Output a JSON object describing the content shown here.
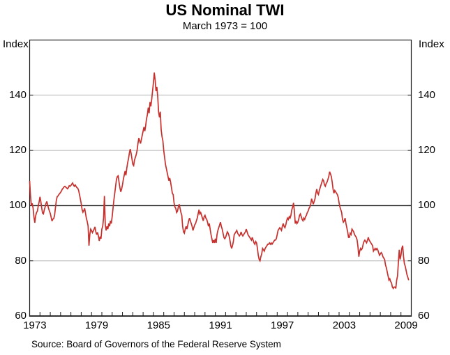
{
  "header": {
    "title": "US Nominal TWI",
    "subtitle": "March 1973 = 100"
  },
  "footer": {
    "source": "Source: Board of Governors of the Federal Reserve System"
  },
  "axis_unit_labels": {
    "left": "Index",
    "right": "Index"
  },
  "chart_data": {
    "type": "line",
    "title": "US Nominal TWI",
    "subtitle": "March 1973 = 100",
    "ylabel_left": "Index",
    "ylabel_right": "Index",
    "ylim": [
      60,
      160
    ],
    "yticks": [
      60,
      80,
      100,
      120,
      140
    ],
    "baseline": 100,
    "xlim": [
      1973,
      2010
    ],
    "xticks_labeled": [
      1973,
      1979,
      1985,
      1991,
      1997,
      2003,
      2009
    ],
    "xtick_minor_interval_years": 1,
    "grid": "horizontal-light-gray",
    "legend": "none",
    "colors": {
      "line": "#c6302d",
      "grid": "#b3b3b3",
      "axis": "#1a1a1a",
      "background": "#ffffff"
    },
    "series": [
      {
        "name": "US Nominal TWI (March 1973 = 100)",
        "color": "#c6302d",
        "frequency": "monthly",
        "start_year": 1973,
        "start_month": 1,
        "values": [
          108.9,
          103.6,
          100.0,
          100.8,
          99.1,
          95.9,
          93.8,
          96.3,
          97.5,
          98.0,
          99.9,
          101.3,
          103.2,
          101.5,
          99.2,
          97.3,
          97.0,
          98.4,
          99.5,
          100.8,
          101.5,
          100.2,
          99.0,
          98.0,
          97.2,
          95.8,
          94.4,
          95.1,
          95.3,
          96.5,
          99.2,
          101.8,
          103.2,
          103.5,
          104.0,
          104.4,
          104.8,
          105.3,
          106.0,
          106.3,
          106.8,
          107.0,
          106.7,
          106.4,
          106.1,
          106.5,
          107.2,
          107.0,
          107.3,
          107.8,
          108.2,
          107.4,
          107.0,
          107.5,
          107.0,
          106.5,
          106.3,
          105.5,
          104.0,
          102.4,
          100.7,
          98.6,
          97.6,
          98.2,
          99.0,
          97.2,
          95.4,
          94.2,
          92.6,
          85.5,
          89.5,
          91.5,
          91.0,
          90.2,
          90.8,
          91.5,
          92.3,
          90.5,
          89.5,
          90.3,
          89.0,
          87.2,
          88.8,
          88.0,
          91.5,
          92.5,
          95.5,
          103.5,
          93.0,
          91.0,
          92.5,
          91.5,
          93.5,
          92.5,
          94.5,
          93.5,
          96.0,
          99.0,
          102.0,
          104.5,
          107.0,
          109.5,
          110.5,
          110.8,
          108.5,
          106.5,
          105.0,
          106.0,
          107.5,
          109.5,
          111.0,
          112.5,
          111.0,
          113.5,
          115.5,
          117.0,
          119.0,
          120.5,
          119.0,
          117.0,
          115.0,
          114.5,
          116.5,
          117.5,
          118.5,
          120.0,
          122.5,
          124.5,
          123.5,
          122.5,
          124.0,
          125.5,
          127.0,
          128.5,
          127.0,
          129.0,
          131.5,
          133.0,
          135.5,
          133.5,
          137.5,
          136.0,
          138.5,
          141.5,
          144.5,
          148.2,
          145.5,
          141.5,
          143.0,
          139.5,
          134.0,
          132.0,
          134.0,
          127.5,
          125.0,
          123.5,
          120.0,
          117.5,
          115.0,
          113.5,
          112.0,
          110.5,
          109.0,
          110.0,
          108.5,
          106.5,
          104.5,
          104.0,
          101.0,
          99.5,
          99.0,
          97.5,
          98.0,
          99.5,
          100.5,
          99.0,
          97.5,
          96.5,
          92.5,
          90.5,
          90.0,
          91.5,
          92.5,
          91.5,
          93.0,
          94.5,
          95.5,
          94.5,
          93.5,
          92.5,
          91.0,
          92.0,
          93.0,
          93.5,
          94.5,
          95.5,
          97.0,
          98.5,
          97.0,
          97.5,
          96.5,
          95.5,
          94.5,
          96.0,
          96.5,
          95.5,
          95.0,
          94.0,
          92.5,
          93.5,
          91.5,
          89.5,
          88.0,
          86.5,
          87.5,
          86.5,
          88.0,
          86.5,
          89.5,
          91.0,
          92.0,
          93.0,
          94.0,
          92.5,
          91.5,
          90.0,
          88.5,
          88.0,
          88.5,
          89.5,
          90.5,
          90.0,
          89.0,
          87.5,
          85.5,
          84.5,
          85.5,
          87.0,
          89.5,
          90.0,
          90.5,
          91.0,
          90.0,
          89.5,
          89.0,
          89.5,
          90.5,
          89.5,
          89.0,
          89.5,
          90.0,
          90.5,
          91.5,
          90.5,
          89.5,
          89.0,
          88.5,
          88.0,
          87.5,
          88.5,
          87.5,
          86.5,
          86.0,
          87.0,
          86.5,
          84.5,
          82.0,
          80.5,
          80.0,
          81.5,
          82.5,
          84.5,
          84.0,
          83.5,
          84.5,
          85.0,
          85.5,
          86.0,
          86.0,
          86.5,
          86.0,
          86.5,
          86.0,
          86.5,
          87.0,
          87.5,
          87.5,
          88.0,
          89.5,
          91.0,
          91.5,
          92.0,
          91.5,
          91.0,
          92.5,
          93.5,
          92.5,
          92.0,
          93.0,
          94.5,
          95.5,
          95.0,
          96.0,
          95.5,
          96.5,
          98.5,
          99.5,
          101.0,
          98.0,
          93.5,
          94.5,
          93.5,
          94.0,
          95.0,
          96.5,
          97.0,
          96.0,
          95.0,
          94.5,
          95.5,
          95.0,
          96.0,
          96.5,
          97.5,
          98.0,
          99.0,
          99.5,
          100.5,
          102.5,
          101.5,
          100.5,
          101.5,
          102.5,
          104.5,
          106.0,
          104.5,
          104.0,
          105.5,
          106.5,
          107.5,
          108.5,
          109.5,
          109.0,
          107.5,
          107.0,
          108.0,
          108.5,
          109.5,
          110.5,
          112.3,
          111.5,
          110.5,
          108.5,
          106.0,
          104.5,
          105.5,
          105.0,
          104.5,
          104.0,
          103.0,
          101.0,
          99.5,
          98.5,
          97.5,
          95.0,
          94.0,
          94.5,
          95.5,
          93.5,
          92.0,
          90.5,
          88.5,
          88.5,
          90.0,
          89.5,
          91.5,
          91.0,
          90.5,
          89.5,
          89.0,
          88.5,
          87.5,
          85.0,
          81.5,
          83.5,
          84.5,
          84.0,
          84.5,
          86.0,
          87.0,
          87.5,
          87.0,
          86.5,
          87.5,
          88.5,
          87.5,
          87.0,
          86.5,
          86.0,
          85.5,
          83.5,
          84.0,
          84.5,
          84.0,
          84.5,
          84.0,
          83.0,
          82.0,
          82.5,
          83.0,
          82.5,
          81.5,
          81.0,
          80.5,
          78.5,
          77.5,
          76.0,
          74.5,
          73.0,
          73.5,
          72.5,
          72.0,
          70.5,
          70.0,
          70.5,
          70.5,
          70.0,
          73.0,
          74.5,
          79.5,
          84.0,
          80.5,
          82.0,
          84.5,
          85.5,
          81.5,
          79.0,
          78.0,
          76.5,
          75.0,
          74.0,
          73.0
        ]
      }
    ]
  }
}
